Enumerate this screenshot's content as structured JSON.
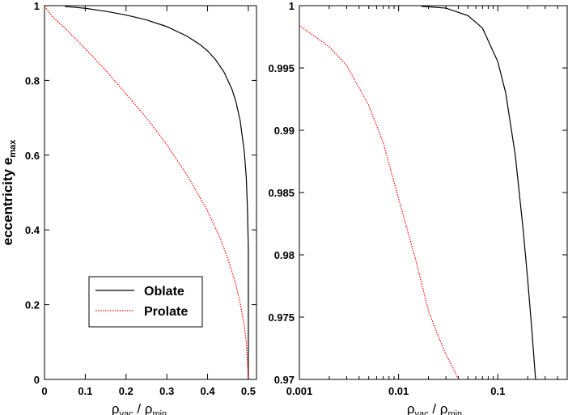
{
  "chart_data": [
    {
      "type": "line",
      "xscale": "linear",
      "xlim": [
        0,
        0.52
      ],
      "ylim": [
        0,
        1
      ],
      "xticks": [
        "0",
        "0.1",
        "0.2",
        "0.3",
        "0.4",
        "0.5"
      ],
      "yticks": [
        "0",
        "0.2",
        "0.4",
        "0.6",
        "0.8",
        "1"
      ],
      "xlabel": {
        "rho": "ρ",
        "num_sub": "vac",
        "sep": " / ",
        "den_sub": "min"
      },
      "ylabel": {
        "main": "eccentricity e",
        "sub": "max"
      },
      "legend": {
        "position": "lower-left",
        "entries": [
          "Oblate",
          "Prolate"
        ]
      },
      "series": [
        {
          "name": "Oblate",
          "color": "#000000",
          "style": "solid",
          "x": [
            0.05,
            0.1,
            0.15,
            0.2,
            0.25,
            0.3,
            0.35,
            0.38,
            0.4,
            0.42,
            0.44,
            0.46,
            0.47,
            0.48,
            0.49,
            0.495,
            0.498,
            0.5,
            0.5
          ],
          "y": [
            0.998,
            0.993,
            0.985,
            0.975,
            0.962,
            0.944,
            0.918,
            0.897,
            0.879,
            0.855,
            0.823,
            0.776,
            0.741,
            0.692,
            0.61,
            0.54,
            0.45,
            0.35,
            0.0
          ]
        },
        {
          "name": "Prolate",
          "color": "#ff0000",
          "style": "dotted",
          "x": [
            0.0,
            0.02,
            0.05,
            0.1,
            0.15,
            0.2,
            0.25,
            0.3,
            0.35,
            0.4,
            0.43,
            0.45,
            0.47,
            0.48,
            0.49,
            0.495,
            0.5
          ],
          "y": [
            0.998,
            0.97,
            0.94,
            0.885,
            0.827,
            0.764,
            0.7,
            0.628,
            0.546,
            0.451,
            0.38,
            0.323,
            0.251,
            0.204,
            0.143,
            0.1,
            0.0
          ]
        }
      ]
    },
    {
      "type": "line",
      "xscale": "log",
      "xlim": [
        0.001,
        0.5
      ],
      "ylim": [
        0.97,
        1
      ],
      "xticks": [
        "0.001",
        "0.01",
        "0.1"
      ],
      "yticks": [
        "0.97",
        "0.975",
        "0.98",
        "0.985",
        "0.99",
        "0.995",
        "1"
      ],
      "xlabel": {
        "rho": "ρ",
        "num_sub": "vac",
        "sep": " / ",
        "den_sub": "min"
      },
      "series": [
        {
          "name": "Oblate",
          "color": "#000000",
          "style": "solid",
          "x": [
            0.017,
            0.03,
            0.05,
            0.07,
            0.1,
            0.12,
            0.15,
            0.18,
            0.2,
            0.22,
            0.24
          ],
          "y": [
            0.99995,
            0.9998,
            0.9992,
            0.9982,
            0.9955,
            0.993,
            0.988,
            0.982,
            0.978,
            0.974,
            0.97
          ]
        },
        {
          "name": "Prolate",
          "color": "#ff0000",
          "style": "dotted",
          "x": [
            0.001,
            0.002,
            0.003,
            0.005,
            0.007,
            0.01,
            0.015,
            0.02,
            0.025,
            0.03,
            0.035,
            0.04
          ],
          "y": [
            0.9984,
            0.9967,
            0.9952,
            0.992,
            0.989,
            0.9845,
            0.9795,
            0.9755,
            0.9735,
            0.972,
            0.971,
            0.97
          ]
        }
      ]
    }
  ]
}
